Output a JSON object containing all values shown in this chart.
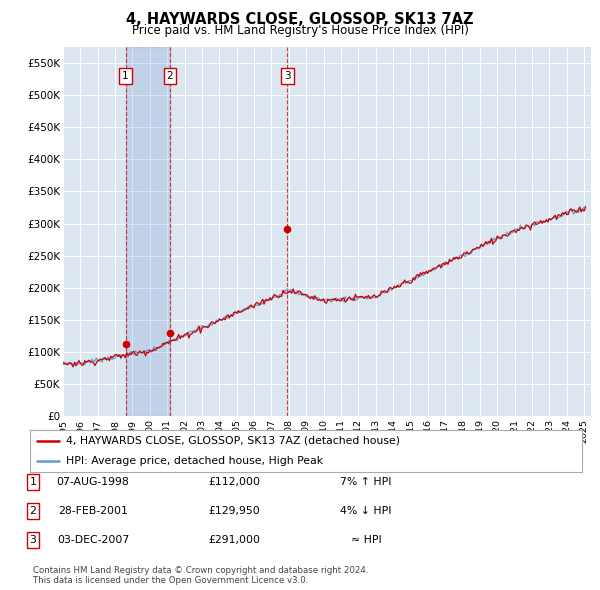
{
  "title": "4, HAYWARDS CLOSE, GLOSSOP, SK13 7AZ",
  "subtitle": "Price paid vs. HM Land Registry's House Price Index (HPI)",
  "ylim": [
    0,
    575000
  ],
  "yticks": [
    0,
    50000,
    100000,
    150000,
    200000,
    250000,
    300000,
    350000,
    400000,
    450000,
    500000,
    550000
  ],
  "ytick_labels": [
    "£0",
    "£50K",
    "£100K",
    "£150K",
    "£200K",
    "£250K",
    "£300K",
    "£350K",
    "£400K",
    "£450K",
    "£500K",
    "£550K"
  ],
  "bg_color": "#dce6f1",
  "grid_color": "#ffffff",
  "sale_years_f": [
    1998.6,
    2001.16,
    2007.92
  ],
  "sale_prices": [
    112000,
    129950,
    291000
  ],
  "sale_labels": [
    "1",
    "2",
    "3"
  ],
  "legend_line1": "4, HAYWARDS CLOSE, GLOSSOP, SK13 7AZ (detached house)",
  "legend_line2": "HPI: Average price, detached house, High Peak",
  "table_rows": [
    [
      "1",
      "07-AUG-1998",
      "£112,000",
      "7% ↑ HPI"
    ],
    [
      "2",
      "28-FEB-2001",
      "£129,950",
      "4% ↓ HPI"
    ],
    [
      "3",
      "03-DEC-2007",
      "£291,000",
      "≈ HPI"
    ]
  ],
  "footer": "Contains HM Land Registry data © Crown copyright and database right 2024.\nThis data is licensed under the Open Government Licence v3.0.",
  "line_color_red": "#cc0000",
  "line_color_blue": "#6699cc",
  "xtick_years": [
    1995,
    1996,
    1997,
    1998,
    1999,
    2000,
    2001,
    2002,
    2003,
    2004,
    2005,
    2006,
    2007,
    2008,
    2009,
    2010,
    2011,
    2012,
    2013,
    2014,
    2015,
    2016,
    2017,
    2018,
    2019,
    2020,
    2021,
    2022,
    2023,
    2024,
    2025
  ]
}
